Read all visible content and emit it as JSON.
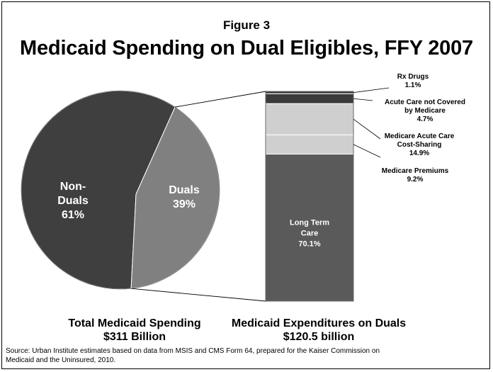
{
  "figure_label": "Figure 3",
  "title": "Medicaid Spending on Dual Eligibles, FFY 2007",
  "captions": {
    "pie_line1": "Total Medicaid Spending",
    "pie_line2": "$311 Billion",
    "bar_line1": "Medicaid Expenditures on Duals",
    "bar_line2": "$120.5 billion"
  },
  "source": "Source: Urban Institute estimates based on data from MSIS and CMS Form 64, prepared for the Kaiser Commission on Medicaid and the Uninsured, 2010.",
  "colors": {
    "non_duals": "#3f3f3f",
    "duals": "#808080",
    "long_term_care": "#5a5a5a",
    "medicare_premiums": "#cfcfcf",
    "medicare_acute": "#cfcfcf",
    "acute_not_covered": "#3a3a3a",
    "rx_drugs": "#3a3a3a"
  },
  "chart_data": [
    {
      "type": "pie",
      "slices": [
        {
          "label_lines": [
            "Non-",
            "Duals"
          ],
          "value": 61,
          "value_label": "61%"
        },
        {
          "label_lines": [
            "Duals"
          ],
          "value": 39,
          "value_label": "39%"
        }
      ]
    },
    {
      "type": "bar",
      "stacked": true,
      "segments": [
        {
          "label_lines": [
            "Long Term",
            "Care"
          ],
          "value": 70.1,
          "value_label": "70.1%"
        },
        {
          "label_lines": [
            "Medicare Premiums"
          ],
          "value": 9.2,
          "value_label": "9.2%"
        },
        {
          "label_lines": [
            "Medicare Acute Care",
            "Cost-Sharing"
          ],
          "value": 14.9,
          "value_label": "14.9%"
        },
        {
          "label_lines": [
            "Acute Care not Covered",
            "by Medicare"
          ],
          "value": 4.7,
          "value_label": "4.7%"
        },
        {
          "label_lines": [
            "Rx Drugs"
          ],
          "value": 1.1,
          "value_label": "1.1%"
        }
      ]
    }
  ]
}
